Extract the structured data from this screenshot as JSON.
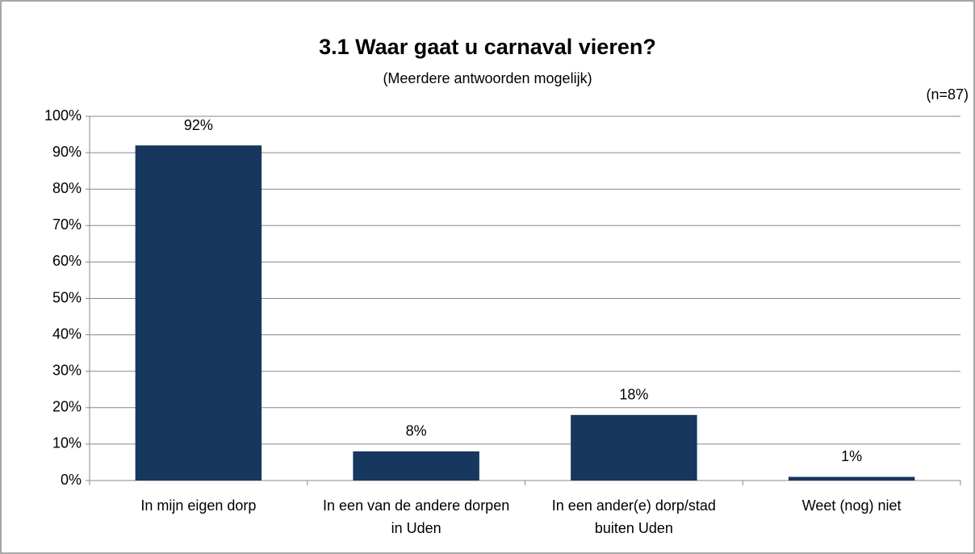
{
  "chart_data": {
    "type": "bar",
    "title": "3.1 Waar gaat u carnaval vieren?",
    "subtitle": "(Meerdere antwoorden mogelijk)",
    "note": "(n=87)",
    "categories": [
      "In mijn eigen dorp",
      "In een van de andere dorpen in Uden",
      "In een ander(e) dorp/stad buiten Uden",
      "Weet (nog) niet"
    ],
    "values": [
      92,
      8,
      18,
      1
    ],
    "value_labels": [
      "92%",
      "8%",
      "18%",
      "1%"
    ],
    "color": "#17375e",
    "ylim": [
      0,
      100
    ],
    "yticks": [
      {
        "value": 0,
        "label": "0%"
      },
      {
        "value": 10,
        "label": "10%"
      },
      {
        "value": 20,
        "label": "20%"
      },
      {
        "value": 30,
        "label": "30%"
      },
      {
        "value": 40,
        "label": "40%"
      },
      {
        "value": 50,
        "label": "50%"
      },
      {
        "value": 60,
        "label": "60%"
      },
      {
        "value": 70,
        "label": "70%"
      },
      {
        "value": 80,
        "label": "80%"
      },
      {
        "value": 90,
        "label": "90%"
      },
      {
        "value": 100,
        "label": "100%"
      }
    ],
    "grid": true
  }
}
